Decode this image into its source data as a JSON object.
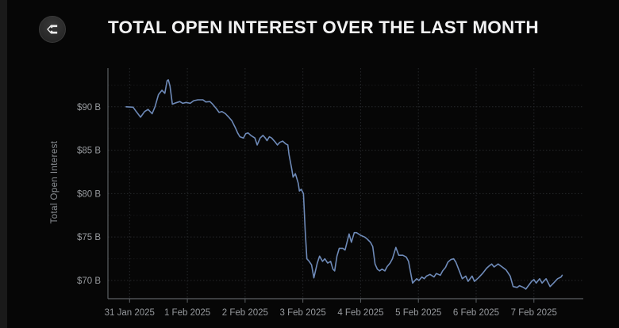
{
  "header": {
    "title": "TOTAL OPEN INTEREST OVER THE LAST MONTH",
    "logo_icon": "sigma-diamond-logo"
  },
  "chart_data": {
    "type": "line",
    "title": "TOTAL OPEN INTEREST OVER THE LAST MONTH",
    "xlabel": "",
    "ylabel": "Total Open Interest",
    "unit": "USD billions",
    "grid": true,
    "legend": "none",
    "x_range_days": [
      -0.375,
      7.855
    ],
    "y_range": [
      67.9,
      94.45
    ],
    "y_ticks": [
      {
        "value": 90,
        "label": "$90 B"
      },
      {
        "value": 85,
        "label": "$85 B"
      },
      {
        "value": 80,
        "label": "$80 B"
      },
      {
        "value": 75,
        "label": "$75 B"
      },
      {
        "value": 70,
        "label": "$70 B"
      }
    ],
    "y_minor_gridlines": [
      92.5,
      87.5,
      82.5,
      77.5,
      72.5
    ],
    "x_ticks": [
      {
        "day": 0,
        "label": "31 Jan 2025"
      },
      {
        "day": 1,
        "label": "1 Feb 2025"
      },
      {
        "day": 2,
        "label": "2 Feb 2025"
      },
      {
        "day": 3,
        "label": "3 Feb 2025"
      },
      {
        "day": 4,
        "label": "4 Feb 2025"
      },
      {
        "day": 5,
        "label": "5 Feb 2025"
      },
      {
        "day": 6,
        "label": "6 Feb 2025"
      },
      {
        "day": 7,
        "label": "7 Feb 2025"
      }
    ],
    "colors": {
      "line": "#6e8ab8",
      "grid_major": "#26282b",
      "grid_minor": "#161719",
      "axis": "#5c6064",
      "tick_label": "#96999d",
      "title": "#f2f2f3",
      "axis_title": "#8b8f94",
      "background": "#060606"
    },
    "series": [
      {
        "name": "Total Open Interest",
        "points": [
          [
            -0.06,
            90.0
          ],
          [
            0.06,
            89.95
          ],
          [
            0.11,
            89.5
          ],
          [
            0.19,
            88.8
          ],
          [
            0.26,
            89.45
          ],
          [
            0.32,
            89.7
          ],
          [
            0.39,
            89.2
          ],
          [
            0.44,
            90.0
          ],
          [
            0.5,
            91.4
          ],
          [
            0.56,
            91.9
          ],
          [
            0.61,
            91.55
          ],
          [
            0.65,
            93.0
          ],
          [
            0.67,
            93.1
          ],
          [
            0.7,
            92.4
          ],
          [
            0.74,
            90.3
          ],
          [
            0.8,
            90.45
          ],
          [
            0.87,
            90.6
          ],
          [
            0.92,
            90.4
          ],
          [
            0.98,
            90.5
          ],
          [
            1.05,
            90.4
          ],
          [
            1.11,
            90.7
          ],
          [
            1.18,
            90.8
          ],
          [
            1.27,
            90.8
          ],
          [
            1.32,
            90.55
          ],
          [
            1.39,
            90.6
          ],
          [
            1.43,
            90.35
          ],
          [
            1.5,
            89.8
          ],
          [
            1.55,
            89.35
          ],
          [
            1.6,
            89.45
          ],
          [
            1.66,
            89.2
          ],
          [
            1.71,
            88.85
          ],
          [
            1.77,
            88.4
          ],
          [
            1.83,
            87.6
          ],
          [
            1.87,
            87.0
          ],
          [
            1.91,
            86.55
          ],
          [
            1.97,
            86.4
          ],
          [
            2.01,
            86.9
          ],
          [
            2.05,
            87.0
          ],
          [
            2.1,
            86.7
          ],
          [
            2.17,
            86.4
          ],
          [
            2.21,
            85.6
          ],
          [
            2.26,
            86.4
          ],
          [
            2.31,
            86.7
          ],
          [
            2.35,
            86.4
          ],
          [
            2.38,
            86.1
          ],
          [
            2.42,
            86.55
          ],
          [
            2.46,
            86.4
          ],
          [
            2.52,
            85.95
          ],
          [
            2.56,
            85.6
          ],
          [
            2.6,
            85.9
          ],
          [
            2.65,
            86.05
          ],
          [
            2.7,
            85.75
          ],
          [
            2.74,
            85.6
          ],
          [
            2.76,
            84.5
          ],
          [
            2.81,
            82.75
          ],
          [
            2.83,
            81.9
          ],
          [
            2.87,
            82.3
          ],
          [
            2.92,
            81.2
          ],
          [
            2.94,
            80.3
          ],
          [
            2.97,
            80.5
          ],
          [
            3.01,
            80.0
          ],
          [
            3.04,
            75.7
          ],
          [
            3.07,
            72.5
          ],
          [
            3.11,
            72.2
          ],
          [
            3.15,
            71.8
          ],
          [
            3.19,
            70.3
          ],
          [
            3.25,
            72.0
          ],
          [
            3.29,
            72.8
          ],
          [
            3.34,
            72.2
          ],
          [
            3.38,
            72.5
          ],
          [
            3.43,
            72.0
          ],
          [
            3.48,
            72.2
          ],
          [
            3.52,
            71.3
          ],
          [
            3.55,
            71.1
          ],
          [
            3.59,
            72.8
          ],
          [
            3.63,
            73.7
          ],
          [
            3.69,
            73.7
          ],
          [
            3.73,
            73.5
          ],
          [
            3.8,
            75.35
          ],
          [
            3.84,
            74.4
          ],
          [
            3.89,
            75.5
          ],
          [
            3.93,
            75.5
          ],
          [
            4.0,
            75.2
          ],
          [
            4.07,
            75.0
          ],
          [
            4.11,
            74.8
          ],
          [
            4.17,
            74.4
          ],
          [
            4.21,
            73.9
          ],
          [
            4.25,
            71.9
          ],
          [
            4.29,
            71.3
          ],
          [
            4.33,
            71.1
          ],
          [
            4.37,
            71.3
          ],
          [
            4.42,
            71.1
          ],
          [
            4.46,
            71.6
          ],
          [
            4.51,
            72.0
          ],
          [
            4.55,
            72.5
          ],
          [
            4.61,
            73.8
          ],
          [
            4.66,
            72.9
          ],
          [
            4.73,
            72.9
          ],
          [
            4.79,
            72.7
          ],
          [
            4.83,
            72.2
          ],
          [
            4.9,
            69.7
          ],
          [
            4.97,
            70.2
          ],
          [
            5.01,
            70.0
          ],
          [
            5.06,
            70.4
          ],
          [
            5.1,
            70.2
          ],
          [
            5.14,
            70.5
          ],
          [
            5.2,
            70.7
          ],
          [
            5.27,
            70.4
          ],
          [
            5.31,
            70.8
          ],
          [
            5.38,
            70.6
          ],
          [
            5.42,
            71.1
          ],
          [
            5.47,
            71.5
          ],
          [
            5.51,
            72.1
          ],
          [
            5.56,
            72.4
          ],
          [
            5.61,
            72.5
          ],
          [
            5.65,
            72.1
          ],
          [
            5.72,
            70.9
          ],
          [
            5.76,
            70.2
          ],
          [
            5.82,
            70.5
          ],
          [
            5.86,
            69.9
          ],
          [
            5.93,
            70.5
          ],
          [
            5.97,
            69.9
          ],
          [
            6.04,
            70.3
          ],
          [
            6.11,
            70.8
          ],
          [
            6.18,
            71.4
          ],
          [
            6.23,
            71.7
          ],
          [
            6.27,
            71.9
          ],
          [
            6.31,
            71.55
          ],
          [
            6.38,
            71.9
          ],
          [
            6.44,
            71.6
          ],
          [
            6.52,
            71.2
          ],
          [
            6.59,
            70.5
          ],
          [
            6.64,
            69.3
          ],
          [
            6.71,
            69.2
          ],
          [
            6.75,
            69.4
          ],
          [
            6.82,
            69.2
          ],
          [
            6.86,
            69.0
          ],
          [
            6.96,
            69.9
          ],
          [
            7.0,
            70.1
          ],
          [
            7.04,
            69.7
          ],
          [
            7.1,
            70.2
          ],
          [
            7.14,
            69.7
          ],
          [
            7.21,
            70.2
          ],
          [
            7.28,
            69.3
          ],
          [
            7.34,
            69.7
          ],
          [
            7.41,
            70.2
          ],
          [
            7.47,
            70.4
          ],
          [
            7.49,
            70.6
          ]
        ]
      }
    ]
  }
}
